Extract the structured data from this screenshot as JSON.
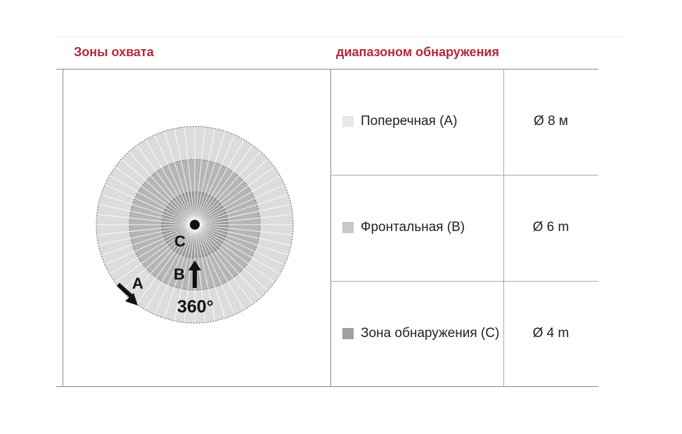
{
  "header": {
    "left": "Зоны охвата",
    "right": "диапазоном обнаружения"
  },
  "diagram": {
    "label_a": "A",
    "label_b": "B",
    "label_c": "C",
    "angle": "360°",
    "colors": {
      "a": "#dcdcdc",
      "b": "#b5b5b5",
      "c": "#9b9b9b"
    }
  },
  "rows": [
    {
      "label": "Поперечная (A)",
      "value": "Ø 8 м",
      "swatch": "#e8e8e8"
    },
    {
      "label": "Фронтальная (B)",
      "value": "Ø 6 m",
      "swatch": "#c8c8c8"
    },
    {
      "label": "Зона обнаружения (C)",
      "value": "Ø 4 m",
      "swatch": "#a0a0a0"
    }
  ]
}
